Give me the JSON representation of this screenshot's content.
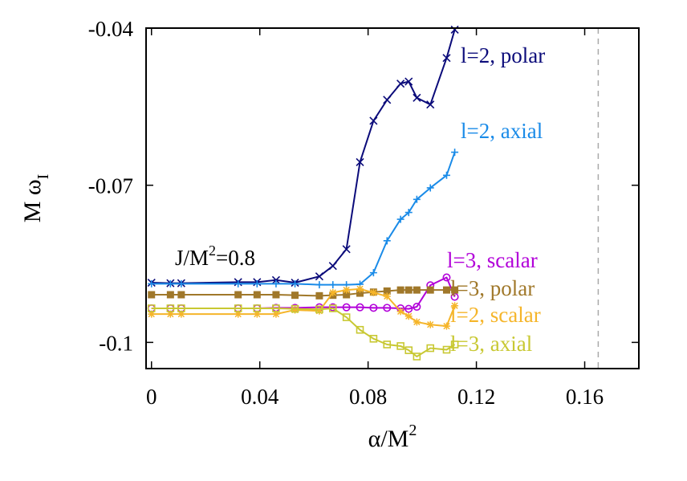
{
  "chart_data": {
    "type": "line",
    "title": "",
    "xlabel": "α/M²",
    "ylabel": "M ω_I",
    "ylabel_main": "M ω",
    "ylabel_sub": "I",
    "xlabel_main": "α/M",
    "xlabel_sup": "2",
    "xlim": [
      -0.002,
      0.18
    ],
    "ylim": [
      -0.105,
      -0.04
    ],
    "xticks": [
      0,
      0.04,
      0.08,
      0.12,
      0.16
    ],
    "xtick_labels": [
      "0",
      "0.04",
      "0.08",
      "0.12",
      "0.16"
    ],
    "yticks": [
      -0.04,
      -0.07,
      -0.1
    ],
    "ytick_labels": [
      "-0.04",
      "-0.07",
      "-0.1"
    ],
    "grid": false,
    "legend": "labels placed beside series ends",
    "annotation": {
      "main": "J/M",
      "sup": "2",
      "rest": "=0.8",
      "full": "J/M²=0.8",
      "x": 0.03,
      "y": -0.0855
    },
    "vline": {
      "x": 0.165,
      "style": "dashed",
      "color": "#aaaaaa"
    },
    "series": [
      {
        "name": "l=2, polar",
        "color": "#0b0b7a",
        "marker": "x",
        "x": [
          0,
          0.007,
          0.011,
          0.032,
          0.039,
          0.046,
          0.053,
          0.062,
          0.067,
          0.072,
          0.077,
          0.082,
          0.087,
          0.092,
          0.095,
          0.098,
          0.103,
          0.109,
          0.112
        ],
        "y": [
          -0.0886,
          -0.0887,
          -0.0887,
          -0.0885,
          -0.0885,
          -0.0881,
          -0.0886,
          -0.0874,
          -0.0854,
          -0.0822,
          -0.0656,
          -0.0577,
          -0.0537,
          -0.0506,
          -0.0502,
          -0.0533,
          -0.0546,
          -0.0457,
          -0.0403
        ]
      },
      {
        "name": "l=2, axial",
        "color": "#1a8be8",
        "marker": "+",
        "x": [
          0,
          0.007,
          0.011,
          0.032,
          0.039,
          0.046,
          0.053,
          0.062,
          0.067,
          0.072,
          0.077,
          0.082,
          0.087,
          0.092,
          0.095,
          0.098,
          0.103,
          0.109,
          0.112
        ],
        "y": [
          -0.0888,
          -0.0888,
          -0.0888,
          -0.0888,
          -0.0888,
          -0.0888,
          -0.0888,
          -0.089,
          -0.089,
          -0.089,
          -0.0889,
          -0.0867,
          -0.0806,
          -0.0765,
          -0.0752,
          -0.0727,
          -0.0705,
          -0.0681,
          -0.0637
        ]
      },
      {
        "name": "l=3, scalar",
        "color": "#b200d9",
        "marker": "o",
        "x": [
          0,
          0.007,
          0.011,
          0.032,
          0.039,
          0.046,
          0.053,
          0.062,
          0.067,
          0.072,
          0.077,
          0.082,
          0.087,
          0.092,
          0.095,
          0.098,
          0.103,
          0.109,
          0.112
        ],
        "y": [
          -0.0935,
          -0.0935,
          -0.0935,
          -0.0935,
          -0.0935,
          -0.0934,
          -0.0934,
          -0.0933,
          -0.0933,
          -0.0933,
          -0.0933,
          -0.0934,
          -0.0934,
          -0.0935,
          -0.0936,
          -0.0932,
          -0.0891,
          -0.0876,
          -0.0913
        ]
      },
      {
        "name": "l=3, polar",
        "color": "#a0782a",
        "marker": "square-filled",
        "x": [
          0,
          0.007,
          0.011,
          0.032,
          0.039,
          0.046,
          0.053,
          0.062,
          0.067,
          0.072,
          0.077,
          0.082,
          0.087,
          0.092,
          0.095,
          0.098,
          0.103,
          0.109,
          0.112
        ],
        "y": [
          -0.0909,
          -0.0909,
          -0.0909,
          -0.0909,
          -0.0909,
          -0.0909,
          -0.091,
          -0.0911,
          -0.091,
          -0.0909,
          -0.0906,
          -0.0904,
          -0.0902,
          -0.09,
          -0.09,
          -0.09,
          -0.09,
          -0.09,
          -0.09
        ]
      },
      {
        "name": "l=2, scalar",
        "color": "#f5b52a",
        "marker": "*",
        "x": [
          0,
          0.007,
          0.011,
          0.032,
          0.039,
          0.046,
          0.053,
          0.062,
          0.067,
          0.072,
          0.077,
          0.082,
          0.087,
          0.092,
          0.095,
          0.098,
          0.103,
          0.109,
          0.112
        ],
        "y": [
          -0.0946,
          -0.0946,
          -0.0946,
          -0.0946,
          -0.0946,
          -0.0946,
          -0.0938,
          -0.094,
          -0.0905,
          -0.09,
          -0.0898,
          -0.0905,
          -0.0912,
          -0.0941,
          -0.095,
          -0.0961,
          -0.0966,
          -0.0969,
          -0.093
        ]
      },
      {
        "name": "l=3, axial",
        "color": "#c8c832",
        "marker": "square-open",
        "x": [
          0,
          0.007,
          0.011,
          0.032,
          0.039,
          0.046,
          0.053,
          0.062,
          0.067,
          0.072,
          0.077,
          0.082,
          0.087,
          0.092,
          0.095,
          0.098,
          0.103,
          0.109,
          0.112
        ],
        "y": [
          -0.0935,
          -0.0935,
          -0.0935,
          -0.0935,
          -0.0935,
          -0.0935,
          -0.0936,
          -0.0937,
          -0.0935,
          -0.0952,
          -0.0976,
          -0.0993,
          -0.1004,
          -0.1007,
          -0.1015,
          -0.1027,
          -0.1011,
          -0.1014,
          -0.1004
        ]
      }
    ]
  }
}
